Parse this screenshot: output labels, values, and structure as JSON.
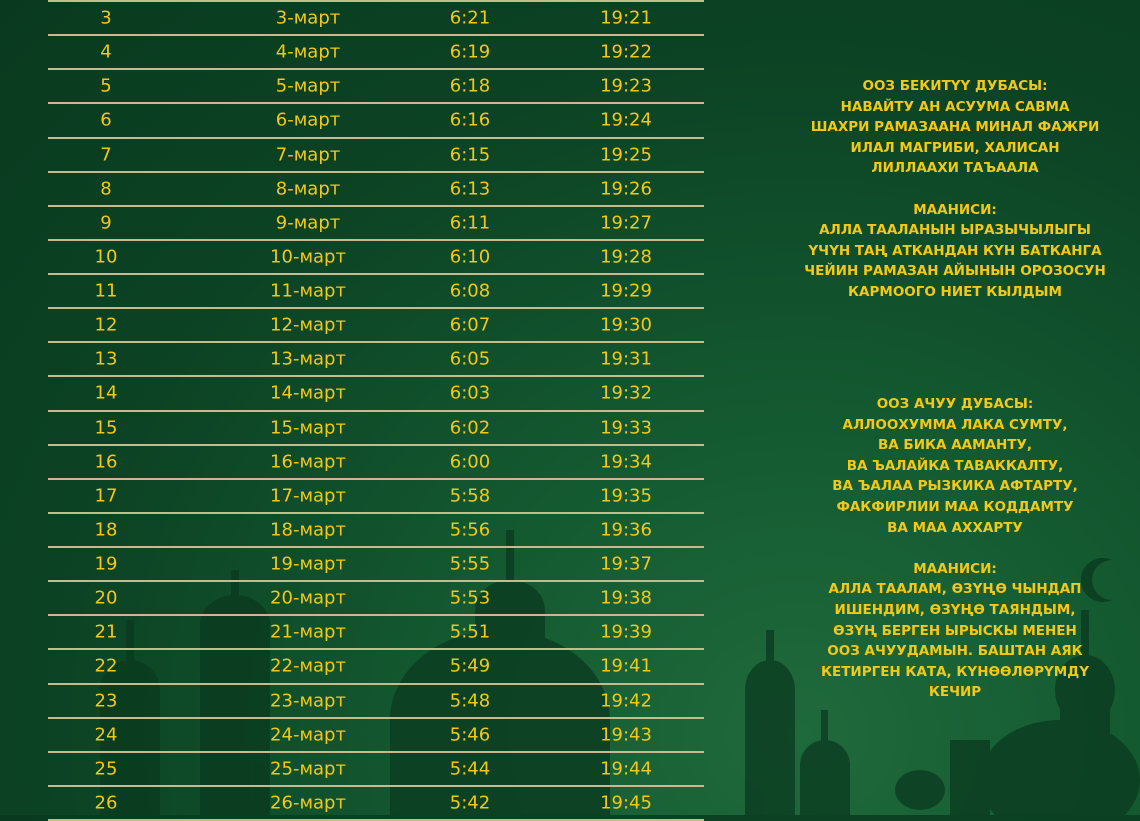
{
  "colors": {
    "background": "#0c4324",
    "text": "#f2c81b",
    "divider": "#c9b98e"
  },
  "table": {
    "columns": [
      "day",
      "date",
      "suhur_end",
      "iftar"
    ],
    "rows": [
      [
        "3",
        "3-март",
        "6:21",
        "19:21"
      ],
      [
        "4",
        "4-март",
        "6:19",
        "19:22"
      ],
      [
        "5",
        "5-март",
        "6:18",
        "19:23"
      ],
      [
        "6",
        "6-март",
        "6:16",
        "19:24"
      ],
      [
        "7",
        "7-март",
        "6:15",
        "19:25"
      ],
      [
        "8",
        "8-март",
        "6:13",
        "19:26"
      ],
      [
        "9",
        "9-март",
        "6:11",
        "19:27"
      ],
      [
        "10",
        "10-март",
        "6:10",
        "19:28"
      ],
      [
        "11",
        "11-март",
        "6:08",
        "19:29"
      ],
      [
        "12",
        "12-март",
        "6:07",
        "19:30"
      ],
      [
        "13",
        "13-март",
        "6:05",
        "19:31"
      ],
      [
        "14",
        "14-март",
        "6:03",
        "19:32"
      ],
      [
        "15",
        "15-март",
        "6:02",
        "19:33"
      ],
      [
        "16",
        "16-март",
        "6:00",
        "19:34"
      ],
      [
        "17",
        "17-март",
        "5:58",
        "19:35"
      ],
      [
        "18",
        "18-март",
        "5:56",
        "19:36"
      ],
      [
        "19",
        "19-март",
        "5:55",
        "19:37"
      ],
      [
        "20",
        "20-март",
        "5:53",
        "19:38"
      ],
      [
        "21",
        "21-март",
        "5:51",
        "19:39"
      ],
      [
        "22",
        "22-март",
        "5:49",
        "19:41"
      ],
      [
        "23",
        "23-март",
        "5:48",
        "19:42"
      ],
      [
        "24",
        "24-март",
        "5:46",
        "19:43"
      ],
      [
        "25",
        "25-март",
        "5:44",
        "19:44"
      ],
      [
        "26",
        "26-март",
        "5:42",
        "19:45"
      ]
    ]
  },
  "dua_closing": {
    "title": "ООЗ БЕКИТҮҮ ДУБАСЫ:",
    "lines": [
      "НАВАЙТУ АН АСУУМА САВМА",
      "ШАХРИ РАМАЗААНА МИНАЛ ФАЖРИ",
      "ИЛАЛ МАГРИБИ, ХАЛИСАН",
      "ЛИЛЛААХИ ТАЪААЛА"
    ],
    "meaning_title": "МААНИСИ:",
    "meaning_lines": [
      "АЛЛА ТААЛАНЫН ЫРАЗЫЧЫЛЫГЫ",
      "ҮЧҮН ТАҢ АТКАНДАН КҮН БАТКАНГА",
      "ЧЕЙИН РАМАЗАН АЙЫНЫН ОРОЗОСУН",
      "КАРМООГО НИЕТ КЫЛДЫМ"
    ]
  },
  "dua_opening": {
    "title": "ООЗ АЧУУ ДУБАСЫ:",
    "lines": [
      "АЛЛООХУММА ЛАКА СУМТУ,",
      "ВА БИКА ААМАНТУ,",
      "ВА ЪАЛАЙКА ТАВАККАЛТУ,",
      "ВА ЪАЛАА РЫЗКИКА АФТАРТУ,",
      "ФАКФИРЛИИ МАА КОДДАМТУ",
      "ВА МАА АХХАРТУ"
    ],
    "meaning_title": "МААНИСИ:",
    "meaning_lines": [
      "АЛЛА ТААЛАМ, ӨЗҮҢӨ ЧЫНДАП",
      "ИШЕНДИМ, ӨЗҮҢӨ ТАЯНДЫМ,",
      "ӨЗҮҢ БЕРГЕН ЫРЫСКЫ МЕНЕН",
      "ООЗ АЧУУДАМЫН. БАШТАН АЯК",
      "КЕТИРГЕН КАТА, КҮНӨӨЛӨРҮМДҮ",
      "КЕЧИР"
    ]
  }
}
